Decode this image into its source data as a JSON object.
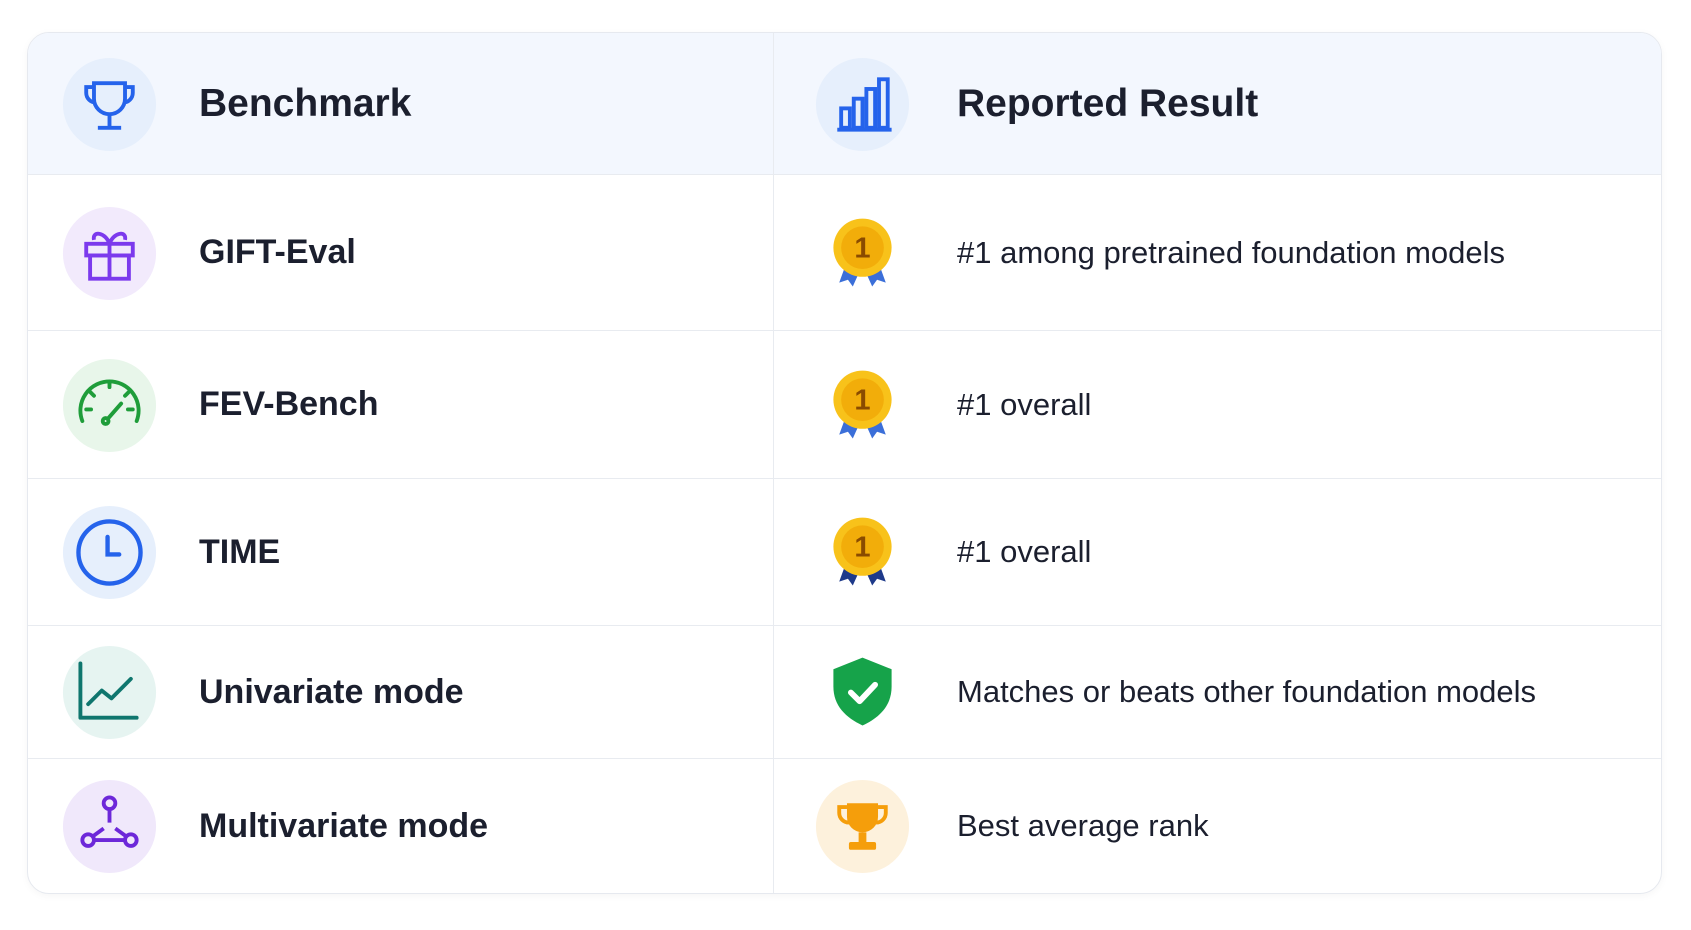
{
  "header": {
    "columns": [
      "Benchmark",
      "Reported Result"
    ]
  },
  "table": {
    "rows": [
      {
        "benchmark": "GIFT-Eval",
        "result": "#1 among pretrained foundation models",
        "badge": "1"
      },
      {
        "benchmark": "FEV-Bench",
        "result": "#1 overall",
        "badge": "1"
      },
      {
        "benchmark": "TIME",
        "result": "#1 overall",
        "badge": "1"
      },
      {
        "benchmark": "Univariate mode",
        "result": "Matches or beats other foundation models"
      },
      {
        "benchmark": "Multivariate mode",
        "result": "Best average rank"
      }
    ]
  }
}
